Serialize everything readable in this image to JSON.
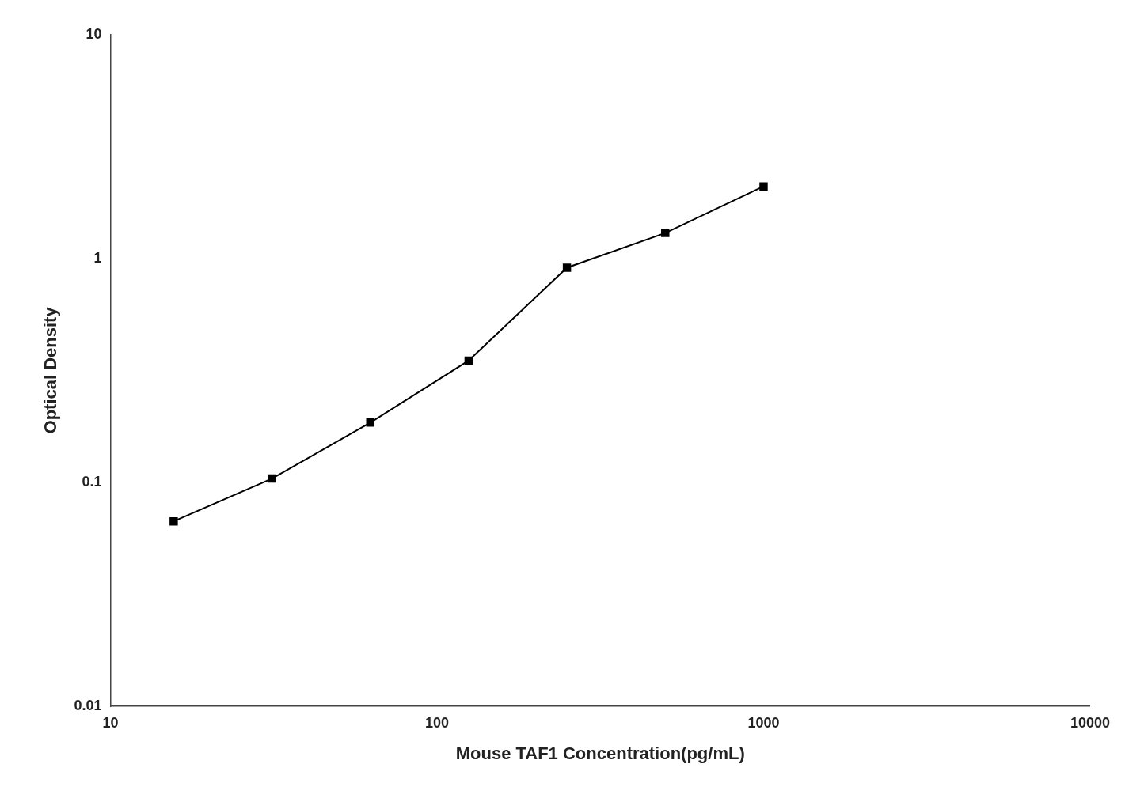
{
  "chart_data": {
    "type": "line",
    "xlabel": "Mouse TAF1 Concentration(pg/mL)",
    "ylabel": "Optical Density",
    "x": [
      15.625,
      31.25,
      62.5,
      125,
      250,
      500,
      1000
    ],
    "values": [
      0.067,
      0.104,
      0.185,
      0.35,
      0.91,
      1.3,
      2.1
    ],
    "color": "#000000",
    "marker": "square",
    "xlim": [
      10,
      10000
    ],
    "ylim": [
      0.01,
      10
    ],
    "xticks": [
      10,
      100,
      1000,
      10000
    ],
    "yticks": [
      0.01,
      0.1,
      1,
      10
    ],
    "log": true,
    "grid": false
  }
}
